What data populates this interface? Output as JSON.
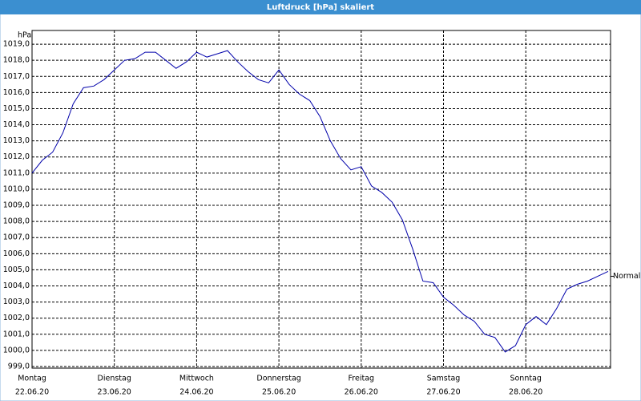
{
  "chart_data": {
    "type": "line",
    "title": "Luftdruck [hPa] skaliert",
    "y_label": "hPa",
    "xlim": [
      0,
      7.03
    ],
    "ylim": [
      998.9,
      1019.85
    ],
    "xticks": [
      {
        "value": 0,
        "label": "Montag"
      },
      {
        "value": 1,
        "label": "Dienstag"
      },
      {
        "value": 2,
        "label": "Mittwoch"
      },
      {
        "value": 3,
        "label": "Donnerstag"
      },
      {
        "value": 4,
        "label": "Freitag"
      },
      {
        "value": 5,
        "label": "Samstag"
      },
      {
        "value": 6,
        "label": "Sonntag"
      }
    ],
    "xtick_dates": [
      "22.06.20",
      "23.06.20",
      "24.06.20",
      "25.06.20",
      "26.06.20",
      "27.06.20",
      "28.06.20"
    ],
    "yticks": [
      {
        "value": 999,
        "label": "999,0"
      },
      {
        "value": 1000,
        "label": "1000,0"
      },
      {
        "value": 1001,
        "label": "1001,0"
      },
      {
        "value": 1002,
        "label": "1002,0"
      },
      {
        "value": 1003,
        "label": "1003,0"
      },
      {
        "value": 1004,
        "label": "1004,0"
      },
      {
        "value": 1005,
        "label": "1005,0"
      },
      {
        "value": 1006,
        "label": "1006,0"
      },
      {
        "value": 1007,
        "label": "1007,0"
      },
      {
        "value": 1008,
        "label": "1008,0"
      },
      {
        "value": 1009,
        "label": "1009,0"
      },
      {
        "value": 1010,
        "label": "1010,0"
      },
      {
        "value": 1011,
        "label": "1011,0"
      },
      {
        "value": 1012,
        "label": "1012,0"
      },
      {
        "value": 1013,
        "label": "1013,0"
      },
      {
        "value": 1014,
        "label": "1014,0"
      },
      {
        "value": 1015,
        "label": "1015,0"
      },
      {
        "value": 1016,
        "label": "1016,0"
      },
      {
        "value": 1017,
        "label": "1017,0"
      },
      {
        "value": 1018,
        "label": "1018,0"
      },
      {
        "value": 1019,
        "label": "1019,0"
      }
    ],
    "grid": true,
    "x": [
      0,
      0.125,
      0.25,
      0.375,
      0.5,
      0.625,
      0.75,
      0.875,
      1,
      1.125,
      1.25,
      1.375,
      1.5,
      1.625,
      1.75,
      1.875,
      2,
      2.125,
      2.25,
      2.375,
      2.5,
      2.625,
      2.75,
      2.875,
      3,
      3.125,
      3.25,
      3.375,
      3.5,
      3.625,
      3.75,
      3.875,
      4,
      4.125,
      4.25,
      4.375,
      4.5,
      4.625,
      4.75,
      4.875,
      5,
      5.125,
      5.25,
      5.375,
      5.5,
      5.625,
      5.75,
      5.875,
      6,
      6.125,
      6.25,
      6.375,
      6.5,
      6.625,
      6.75,
      6.875,
      7
    ],
    "series": [
      {
        "color": "#0000aa",
        "values": [
          1011.0,
          1011.8,
          1012.3,
          1013.5,
          1015.3,
          1016.3,
          1016.4,
          1016.8,
          1017.4,
          1018.0,
          1018.1,
          1018.5,
          1018.5,
          1018.0,
          1017.5,
          1017.9,
          1018.5,
          1018.2,
          1018.4,
          1018.6,
          1017.9,
          1017.3,
          1016.8,
          1016.6,
          1017.4,
          1016.5,
          1015.9,
          1015.5,
          1014.5,
          1013.0,
          1011.9,
          1011.2,
          1011.4,
          1010.2,
          1009.8,
          1009.2,
          1008.1,
          1006.3,
          1004.3,
          1004.2,
          1003.3,
          1002.8,
          1002.2,
          1001.8,
          1001.0,
          1000.8,
          999.9,
          1000.3,
          1001.6,
          1002.1,
          1001.6,
          1002.6,
          1003.8,
          1004.1,
          1004.3,
          1004.6,
          1004.9
        ]
      }
    ],
    "reference": {
      "label": "Normal",
      "value": 1004.6
    }
  }
}
